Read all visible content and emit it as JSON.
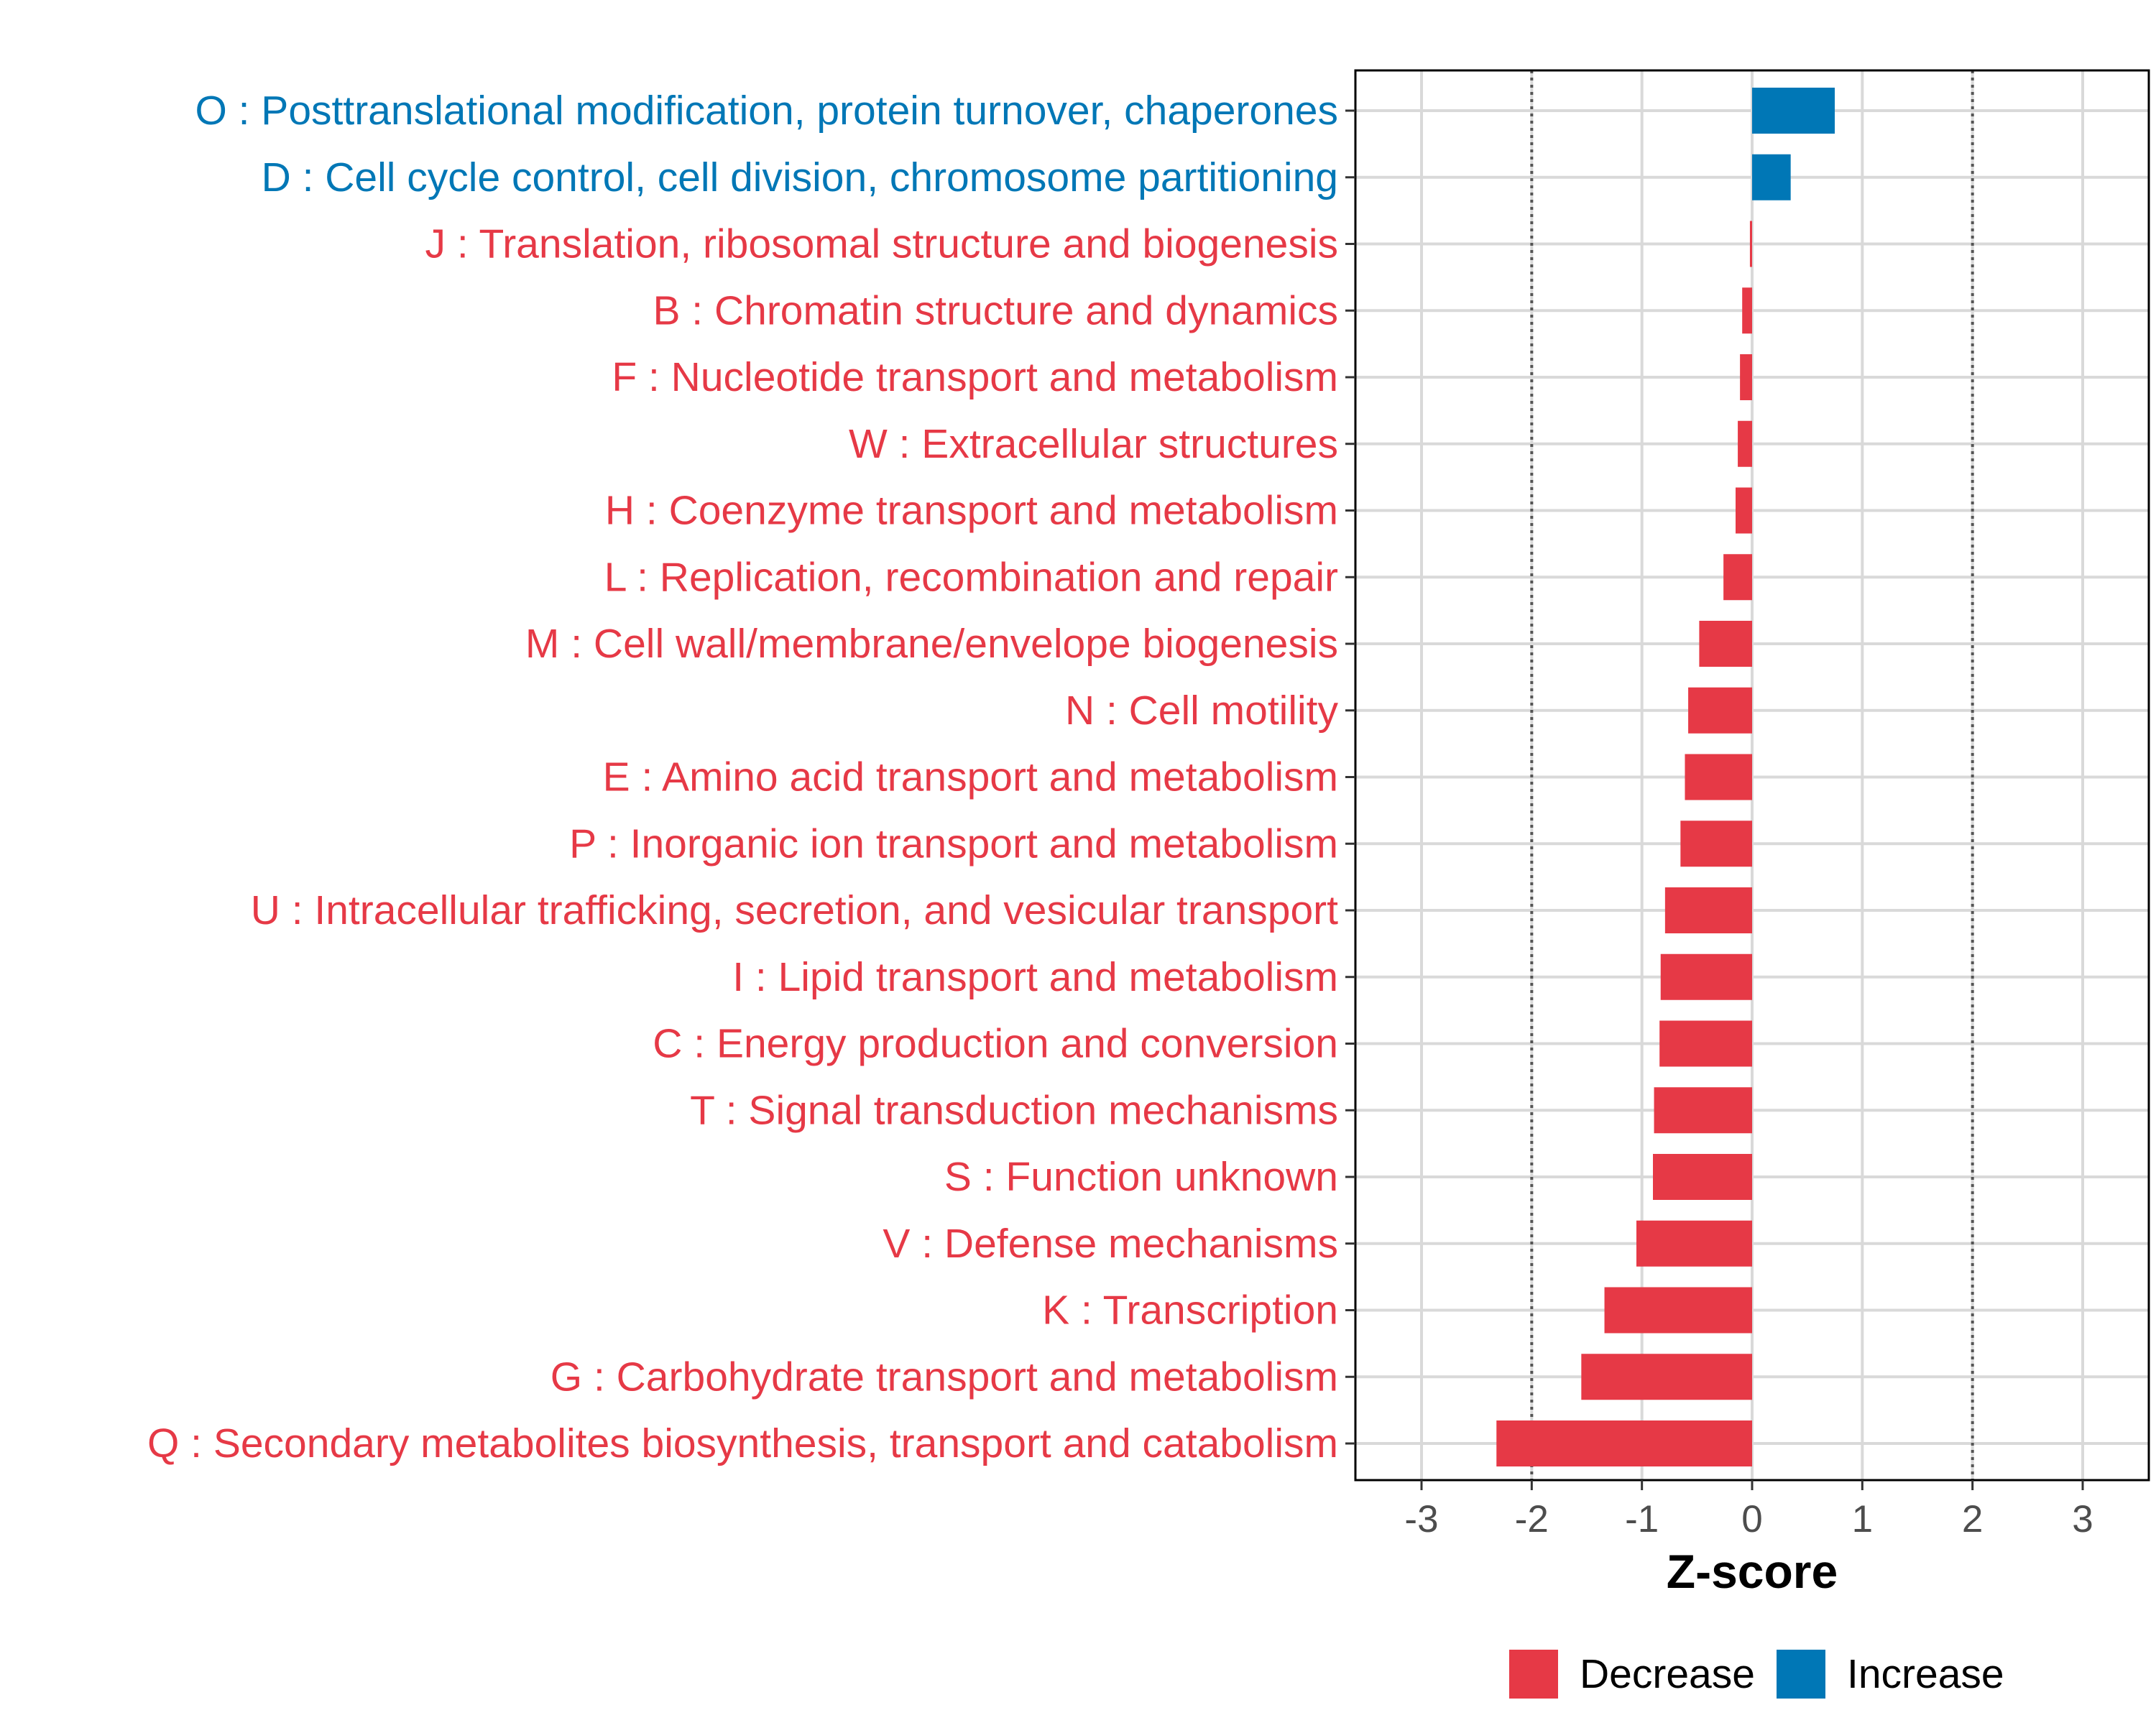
{
  "chart_data": {
    "type": "bar",
    "orientation": "horizontal",
    "xlabel": "Z-score",
    "ylabel": "",
    "xlim": [
      -3.6,
      3.6
    ],
    "x_ticks": [
      -3,
      -2,
      -1,
      0,
      1,
      2,
      3
    ],
    "x_tick_labels": [
      "-3",
      "-2",
      "-1",
      "0",
      "1",
      "2",
      "3"
    ],
    "reference_lines": [
      -2,
      2
    ],
    "grid": true,
    "legend": {
      "position": "bottom",
      "entries": [
        {
          "key": "decrease",
          "label": "Decrease"
        },
        {
          "key": "increase",
          "label": "Increase"
        }
      ]
    },
    "colors": {
      "decrease": "#E63946",
      "increase": "#0077B6",
      "grid": "#d9d9d9",
      "reference": "#555555",
      "frame": "#000000"
    },
    "categories": [
      {
        "label": "O : Posttranslational modification, protein turnover, chaperones",
        "value": 0.75,
        "direction": "increase"
      },
      {
        "label": "D : Cell cycle control, cell division, chromosome partitioning",
        "value": 0.35,
        "direction": "increase"
      },
      {
        "label": "J : Translation, ribosomal structure and biogenesis",
        "value": -0.02,
        "direction": "decrease"
      },
      {
        "label": "B : Chromatin structure and dynamics",
        "value": -0.09,
        "direction": "decrease"
      },
      {
        "label": "F : Nucleotide transport and metabolism",
        "value": -0.11,
        "direction": "decrease"
      },
      {
        "label": "W : Extracellular structures",
        "value": -0.13,
        "direction": "decrease"
      },
      {
        "label": "H : Coenzyme transport and metabolism",
        "value": -0.15,
        "direction": "decrease"
      },
      {
        "label": "L : Replication, recombination and repair",
        "value": -0.26,
        "direction": "decrease"
      },
      {
        "label": "M : Cell wall/membrane/envelope biogenesis",
        "value": -0.48,
        "direction": "decrease"
      },
      {
        "label": "N : Cell motility",
        "value": -0.58,
        "direction": "decrease"
      },
      {
        "label": "E : Amino acid transport and metabolism",
        "value": -0.61,
        "direction": "decrease"
      },
      {
        "label": "P : Inorganic ion transport and metabolism",
        "value": -0.65,
        "direction": "decrease"
      },
      {
        "label": "U : Intracellular trafficking, secretion, and vesicular transport",
        "value": -0.79,
        "direction": "decrease"
      },
      {
        "label": "I : Lipid transport and metabolism",
        "value": -0.83,
        "direction": "decrease"
      },
      {
        "label": "C : Energy production and conversion",
        "value": -0.84,
        "direction": "decrease"
      },
      {
        "label": "T : Signal transduction mechanisms",
        "value": -0.89,
        "direction": "decrease"
      },
      {
        "label": "S : Function unknown",
        "value": -0.9,
        "direction": "decrease"
      },
      {
        "label": "V : Defense mechanisms",
        "value": -1.05,
        "direction": "decrease"
      },
      {
        "label": "K : Transcription",
        "value": -1.34,
        "direction": "decrease"
      },
      {
        "label": "G : Carbohydrate transport and metabolism",
        "value": -1.55,
        "direction": "decrease"
      },
      {
        "label": "Q : Secondary metabolites biosynthesis, transport and catabolism",
        "value": -2.32,
        "direction": "decrease"
      }
    ]
  }
}
